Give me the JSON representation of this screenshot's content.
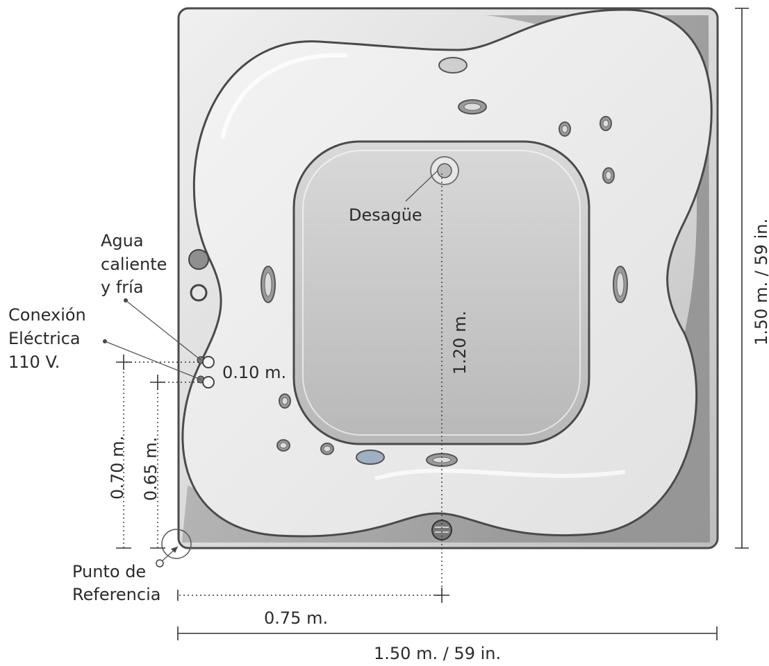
{
  "labels": {
    "drain": "Desagüe",
    "water_line1": "Agua",
    "water_line2": "caliente",
    "water_line3": "y fría",
    "electric_line1": "Conexión",
    "electric_line2": "Eléctrica",
    "electric_line3": "110 V.",
    "reference_line1": "Punto de",
    "reference_line2": "Referencia"
  },
  "dimensions": {
    "connection_spacing": "0.10 m.",
    "drain_distance": "1.20 m.",
    "water_height": "0.70 m.",
    "electric_height": "0.65 m.",
    "drain_offset": "0.75 m.",
    "total_width": "1.50 m. / 59 in.",
    "total_height": "1.50 m. / 59 in."
  },
  "colors": {
    "outer_frame": "#dedede",
    "shell_shadow": "#a9a9a9",
    "tub_surface": "#ececec",
    "footwell": "#cfcfcf",
    "outline": "#4a4a4a"
  }
}
